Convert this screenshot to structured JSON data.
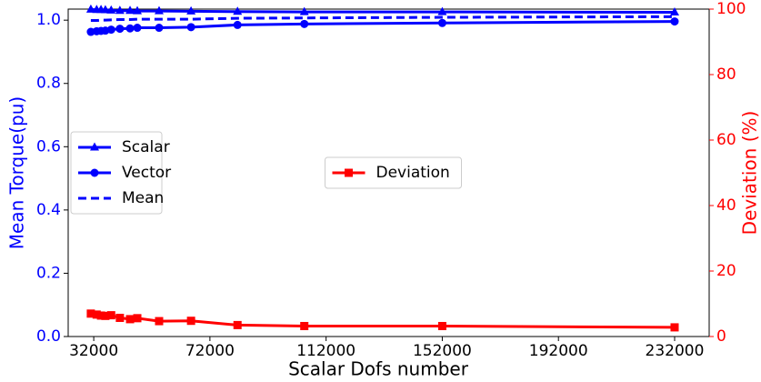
{
  "chart_data": {
    "type": "line",
    "xlabel": "Scalar Dofs number",
    "ylabel": "Mean Torque(pu)",
    "y2label": "Deviation (%)",
    "ylabel_color": "#0000ff",
    "y2label_color": "#ff0000",
    "x": [
      31000,
      33000,
      34500,
      36000,
      38000,
      41000,
      44500,
      47000,
      54500,
      65500,
      81500,
      104500,
      152000,
      232000
    ],
    "xlim": [
      23200,
      243900
    ],
    "xticks": [
      32000,
      72000,
      112000,
      152000,
      192000,
      232000
    ],
    "ylim": [
      0,
      1.035
    ],
    "yticks": [
      {
        "value": 0,
        "label": "0.0"
      },
      0.2,
      0.4,
      0.6,
      0.8,
      {
        "value": 1,
        "label": "1.0"
      }
    ],
    "y2lim": [
      0,
      100
    ],
    "y2ticks": [
      0,
      20,
      40,
      60,
      80,
      100
    ],
    "legend": {
      "y": "center left",
      "y2": "center"
    },
    "series": [
      {
        "name": "Scalar",
        "color": "#0000ff",
        "marker": "triangle",
        "style": "solid",
        "values": [
          1.034,
          1.033,
          1.033,
          1.032,
          1.031,
          1.03,
          1.03,
          1.029,
          1.029,
          1.028,
          1.027,
          1.026,
          1.026,
          1.025
        ]
      },
      {
        "name": "Vector",
        "color": "#0000ff",
        "marker": "circle",
        "style": "solid",
        "values": [
          0.963,
          0.965,
          0.966,
          0.967,
          0.97,
          0.973,
          0.974,
          0.976,
          0.976,
          0.978,
          0.985,
          0.988,
          0.991,
          0.996
        ]
      },
      {
        "name": "Mean",
        "color": "#0000ff",
        "marker": "none",
        "style": "dashed",
        "values": [
          0.999,
          0.999,
          1.0,
          1.0,
          1.001,
          1.002,
          1.002,
          1.003,
          1.003,
          1.003,
          1.006,
          1.007,
          1.009,
          1.011
        ]
      },
      {
        "name": "Deviation",
        "color": "#ff0000",
        "marker": "square",
        "style": "solid",
        "axis": "y2",
        "values": [
          7.0,
          6.7,
          6.4,
          6.3,
          6.5,
          5.7,
          5.3,
          5.6,
          4.7,
          4.8,
          3.5,
          3.2,
          3.2,
          2.8
        ]
      }
    ]
  }
}
